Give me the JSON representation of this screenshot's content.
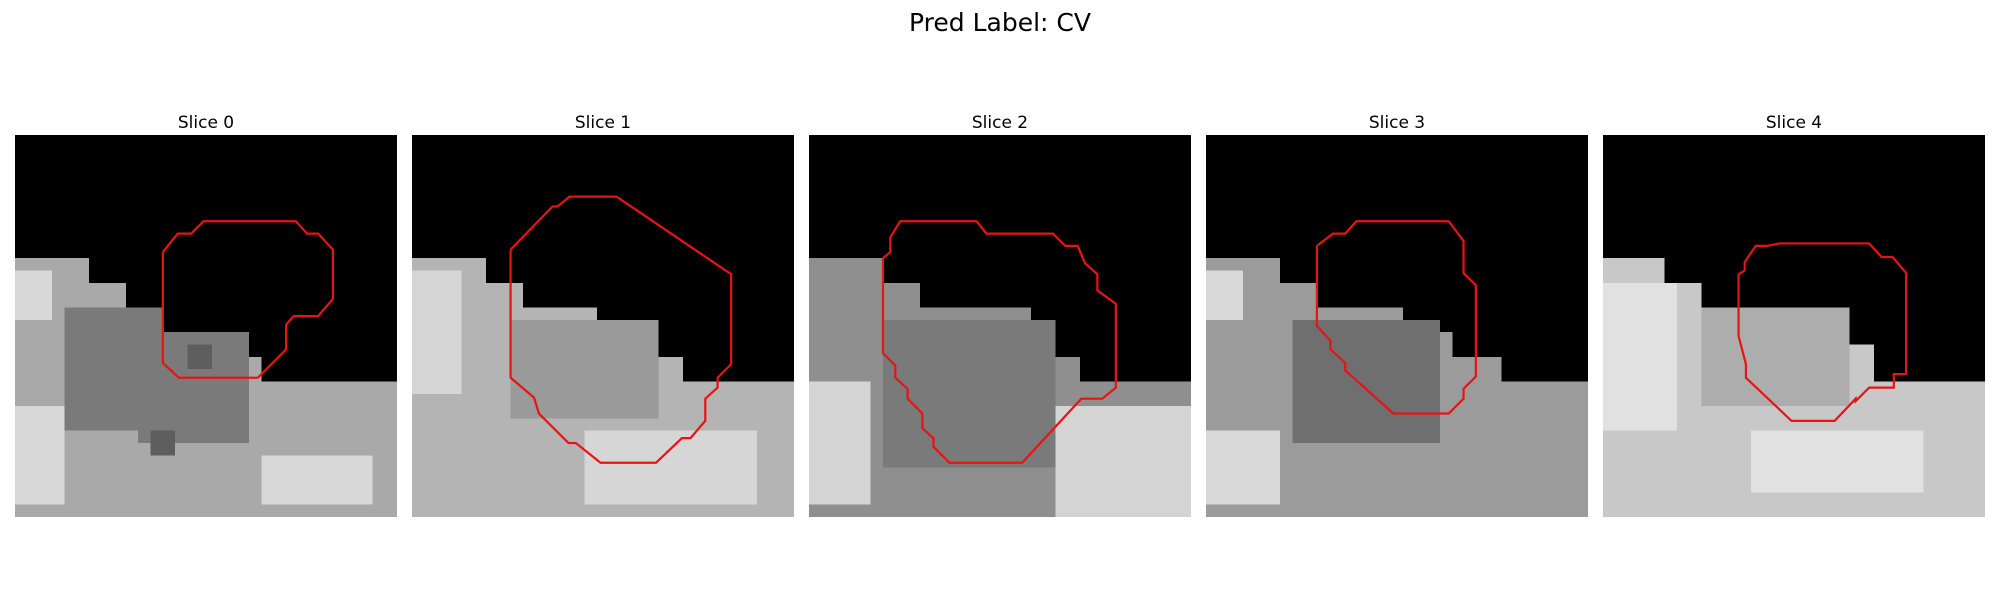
{
  "figure": {
    "title": "Pred Label: CV",
    "panels": [
      {
        "title": "Slice 0"
      },
      {
        "title": "Slice 1"
      },
      {
        "title": "Slice 2"
      },
      {
        "title": "Slice 3"
      },
      {
        "title": "Slice 4"
      }
    ],
    "contour_color": "#e61414"
  }
}
